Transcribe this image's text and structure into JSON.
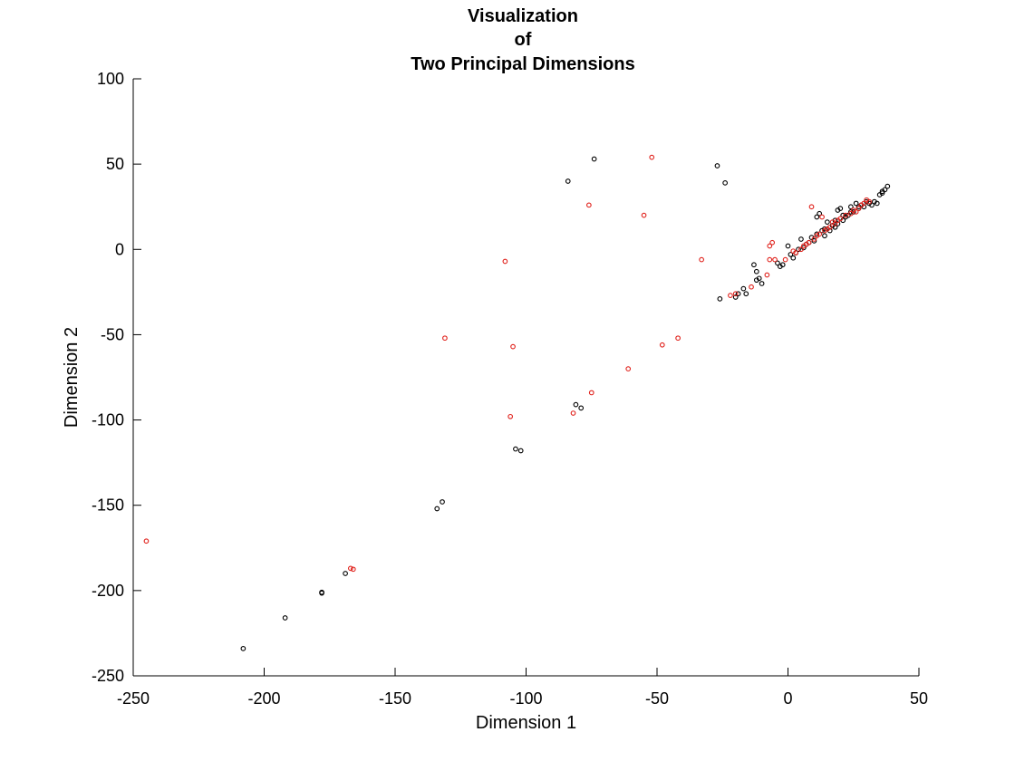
{
  "chart_data": {
    "type": "scatter",
    "title": [
      "Visualization",
      "of",
      "Two Principal Dimensions"
    ],
    "xlabel": "Dimension 1",
    "ylabel": "Dimension 2",
    "xlim": [
      -250,
      50
    ],
    "ylim": [
      -250,
      100
    ],
    "xticks": [
      -250,
      -200,
      -150,
      -100,
      -50,
      0,
      50
    ],
    "yticks": [
      -250,
      -200,
      -150,
      -100,
      -50,
      0,
      50,
      100
    ],
    "grid": false,
    "legend": "none",
    "series": [
      {
        "color": "#000000",
        "points": [
          [
            -208,
            -234
          ],
          [
            -192,
            -216
          ],
          [
            -178,
            -201
          ],
          [
            -178,
            -201.5
          ],
          [
            -169,
            -190
          ],
          [
            -134,
            -152
          ],
          [
            -132,
            -148
          ],
          [
            -104,
            -117
          ],
          [
            -102,
            -118
          ],
          [
            -81,
            -91
          ],
          [
            -79,
            -93
          ],
          [
            -84,
            40
          ],
          [
            -74,
            53
          ],
          [
            -27,
            49
          ],
          [
            -24,
            39
          ],
          [
            -26,
            -29
          ],
          [
            -20,
            -28
          ],
          [
            -19,
            -26
          ],
          [
            -17,
            -23
          ],
          [
            -16,
            -26
          ],
          [
            -13,
            -9
          ],
          [
            -12,
            -13
          ],
          [
            -12,
            -18
          ],
          [
            -11,
            -17
          ],
          [
            -10,
            -20
          ],
          [
            -4,
            -8
          ],
          [
            -3,
            -10
          ],
          [
            -2,
            -9
          ],
          [
            0,
            2
          ],
          [
            1,
            -3
          ],
          [
            2,
            -5
          ],
          [
            3,
            -2
          ],
          [
            4,
            0
          ],
          [
            5,
            6
          ],
          [
            6,
            1
          ],
          [
            7,
            3
          ],
          [
            8,
            4
          ],
          [
            9,
            7
          ],
          [
            10,
            5
          ],
          [
            11,
            9
          ],
          [
            11,
            19
          ],
          [
            12,
            21
          ],
          [
            13,
            11
          ],
          [
            14,
            12
          ],
          [
            15,
            16
          ],
          [
            16,
            11
          ],
          [
            17,
            14
          ],
          [
            18,
            13
          ],
          [
            19,
            23
          ],
          [
            19,
            15
          ],
          [
            20,
            24
          ],
          [
            21,
            17
          ],
          [
            22,
            19
          ],
          [
            23,
            20
          ],
          [
            24,
            25
          ],
          [
            25,
            22
          ],
          [
            26,
            27
          ],
          [
            27,
            24
          ],
          [
            28,
            26
          ],
          [
            29,
            25
          ],
          [
            30,
            28
          ],
          [
            31,
            27
          ],
          [
            32,
            26
          ],
          [
            33,
            28
          ],
          [
            34,
            27
          ],
          [
            35,
            32
          ],
          [
            36,
            33
          ],
          [
            36,
            34
          ],
          [
            37,
            35
          ],
          [
            38,
            37
          ],
          [
            14,
            8
          ],
          [
            18,
            17
          ],
          [
            21,
            20
          ],
          [
            24,
            22
          ],
          [
            27,
            25
          ]
        ]
      },
      {
        "color": "#e0201a",
        "points": [
          [
            -245,
            -171
          ],
          [
            -167,
            -187
          ],
          [
            -166,
            -187.5
          ],
          [
            -131,
            -52
          ],
          [
            -108,
            -7
          ],
          [
            -106,
            -98
          ],
          [
            -105,
            -57
          ],
          [
            -82,
            -96
          ],
          [
            -76,
            26
          ],
          [
            -75,
            -84
          ],
          [
            -61,
            -70
          ],
          [
            -55,
            20
          ],
          [
            -52,
            54
          ],
          [
            -48,
            -56
          ],
          [
            -42,
            -52
          ],
          [
            -33,
            -6
          ],
          [
            -22,
            -27
          ],
          [
            -20,
            -26
          ],
          [
            -14,
            -22
          ],
          [
            -8,
            -15
          ],
          [
            -7,
            -6
          ],
          [
            -7,
            2
          ],
          [
            -6,
            4
          ],
          [
            -5,
            -6
          ],
          [
            -1,
            -6
          ],
          [
            2,
            -1
          ],
          [
            3,
            -2
          ],
          [
            5,
            0
          ],
          [
            6,
            2
          ],
          [
            7,
            3
          ],
          [
            8,
            4
          ],
          [
            9,
            25
          ],
          [
            10,
            6
          ],
          [
            11,
            8
          ],
          [
            12,
            9
          ],
          [
            13,
            19
          ],
          [
            14,
            11
          ],
          [
            15,
            12
          ],
          [
            16,
            13
          ],
          [
            17,
            16
          ],
          [
            18,
            15
          ],
          [
            19,
            17
          ],
          [
            20,
            18
          ],
          [
            22,
            20
          ],
          [
            24,
            21
          ],
          [
            25,
            23
          ],
          [
            26,
            22
          ],
          [
            27,
            24
          ],
          [
            28,
            26
          ],
          [
            29,
            27
          ],
          [
            30,
            29
          ],
          [
            31,
            28
          ]
        ]
      }
    ]
  }
}
